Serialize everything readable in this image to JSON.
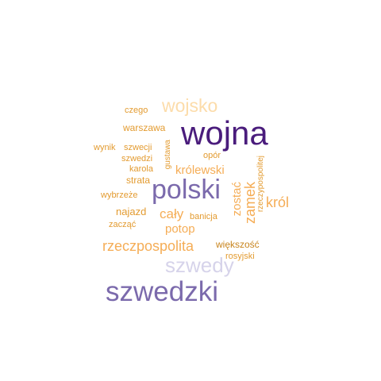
{
  "palette": {
    "dark_purple": "#4a1c7c",
    "purple": "#7b6aac",
    "lavender": "#d6d3ea",
    "peach": "#fcdcaa",
    "light_orange": "#f5ad56",
    "orange": "#e39b30",
    "dark_orange": "#c8841c"
  },
  "words": [
    {
      "text": "wojna",
      "color": "#4a1c7c"
    },
    {
      "text": "polski",
      "color": "#7b6aac"
    },
    {
      "text": "szwedzki",
      "color": "#7b6aac"
    },
    {
      "text": "szwedy",
      "color": "#d6d3ea"
    },
    {
      "text": "wojsko",
      "color": "#fcdcaa"
    },
    {
      "text": "rzeczpospolita",
      "color": "#f5ad56"
    },
    {
      "text": "zamek",
      "color": "#f5ad56"
    },
    {
      "text": "król",
      "color": "#f5ad56"
    },
    {
      "text": "cały",
      "color": "#f5ad56"
    },
    {
      "text": "najazd",
      "color": "#e39b30"
    },
    {
      "text": "potop",
      "color": "#f5ad56"
    },
    {
      "text": "królewski",
      "color": "#f5ad56"
    },
    {
      "text": "zostać",
      "color": "#f5ad56"
    },
    {
      "text": "warszawa",
      "color": "#e39b30"
    },
    {
      "text": "strata",
      "color": "#e39b30"
    },
    {
      "text": "większość",
      "color": "#c8841c"
    },
    {
      "text": "czego",
      "color": "#e39b30"
    },
    {
      "text": "wynik",
      "color": "#e39b30"
    },
    {
      "text": "szwecji",
      "color": "#e39b30"
    },
    {
      "text": "szwedzi",
      "color": "#e39b30"
    },
    {
      "text": "karola",
      "color": "#e39b30"
    },
    {
      "text": "gustawa",
      "color": "#e39b30"
    },
    {
      "text": "opór",
      "color": "#e39b30"
    },
    {
      "text": "wybrzeże",
      "color": "#e39b30"
    },
    {
      "text": "zacząć",
      "color": "#e39b30"
    },
    {
      "text": "banicja",
      "color": "#e39b30"
    },
    {
      "text": "rzeczypospolitej",
      "color": "#e39b30"
    },
    {
      "text": "rosyjski",
      "color": "#e39b30"
    }
  ]
}
